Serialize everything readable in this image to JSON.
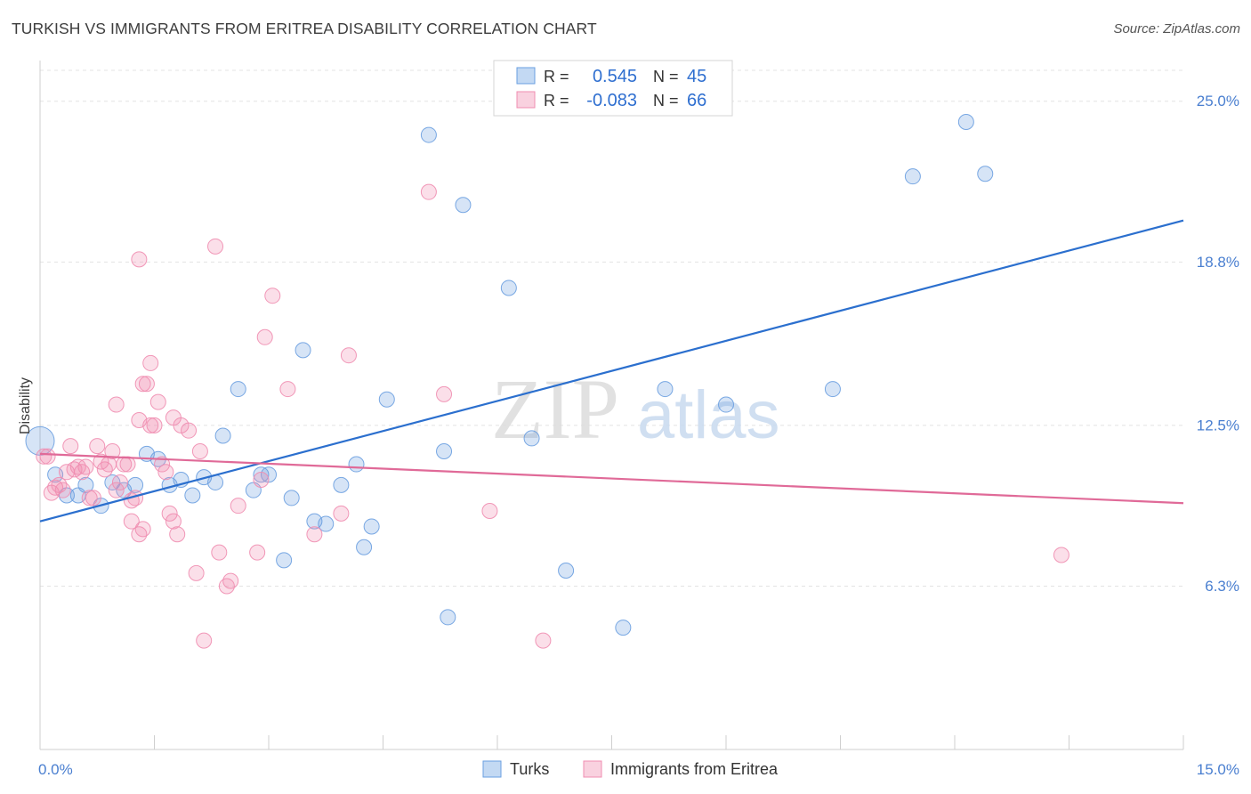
{
  "chart_data": {
    "type": "scatter",
    "title": "TURKISH VS IMMIGRANTS FROM ERITREA DISABILITY CORRELATION CHART",
    "source": "Source: ZipAtlas.com",
    "ylabel": "Disability",
    "xlabel": "",
    "xlim": [
      0,
      15
    ],
    "ylim": [
      0,
      26.5
    ],
    "x_tick_labels": [
      "0.0%",
      "15.0%"
    ],
    "y_ticks": [
      {
        "value": 6.3,
        "label": "6.3%"
      },
      {
        "value": 12.5,
        "label": "12.5%"
      },
      {
        "value": 18.8,
        "label": "18.8%"
      },
      {
        "value": 25.0,
        "label": "25.0%"
      }
    ],
    "watermark": {
      "part1": "ZIP",
      "part2": "atlas"
    },
    "legend": [
      {
        "r_label": "R =",
        "r_value": "0.545",
        "n_label": "N =",
        "n_value": "45"
      },
      {
        "r_label": "R =",
        "r_value": "-0.083",
        "n_label": "N =",
        "n_value": "66"
      }
    ],
    "series": [
      {
        "name": "Turks",
        "color": "#6a9fe0",
        "line_color": "#2b6fce",
        "trend": {
          "x0": 0,
          "y0": 8.8,
          "x1": 15,
          "y1": 20.4
        },
        "points": [
          [
            0.0,
            11.9
          ],
          [
            0.2,
            10.6
          ],
          [
            0.35,
            9.8
          ],
          [
            0.5,
            9.8
          ],
          [
            0.6,
            10.2
          ],
          [
            0.8,
            9.4
          ],
          [
            0.95,
            10.3
          ],
          [
            1.1,
            10.0
          ],
          [
            1.25,
            10.2
          ],
          [
            1.4,
            11.4
          ],
          [
            1.55,
            11.2
          ],
          [
            1.7,
            10.2
          ],
          [
            1.85,
            10.4
          ],
          [
            2.0,
            9.8
          ],
          [
            2.15,
            10.5
          ],
          [
            2.3,
            10.3
          ],
          [
            2.4,
            12.1
          ],
          [
            2.6,
            13.9
          ],
          [
            2.8,
            10.0
          ],
          [
            2.9,
            10.6
          ],
          [
            3.0,
            10.6
          ],
          [
            3.2,
            7.3
          ],
          [
            3.3,
            9.7
          ],
          [
            3.45,
            15.4
          ],
          [
            3.6,
            8.8
          ],
          [
            3.75,
            8.7
          ],
          [
            3.95,
            10.2
          ],
          [
            4.15,
            11.0
          ],
          [
            4.25,
            7.8
          ],
          [
            4.35,
            8.6
          ],
          [
            4.55,
            13.5
          ],
          [
            5.1,
            23.7
          ],
          [
            5.3,
            11.5
          ],
          [
            5.35,
            5.1
          ],
          [
            5.55,
            21.0
          ],
          [
            6.15,
            17.8
          ],
          [
            6.45,
            12.0
          ],
          [
            6.9,
            6.9
          ],
          [
            7.65,
            4.7
          ],
          [
            8.2,
            13.9
          ],
          [
            9.0,
            13.3
          ],
          [
            10.4,
            13.9
          ],
          [
            11.45,
            22.1
          ],
          [
            12.15,
            24.2
          ],
          [
            12.4,
            22.2
          ]
        ]
      },
      {
        "name": "Immigrants from Eritrea",
        "color": "#f08db0",
        "line_color": "#e06a98",
        "trend": {
          "x0": 0,
          "y0": 11.4,
          "x1": 15,
          "y1": 9.5
        },
        "points": [
          [
            0.05,
            11.3
          ],
          [
            0.1,
            11.3
          ],
          [
            0.15,
            9.9
          ],
          [
            0.2,
            10.1
          ],
          [
            0.25,
            10.2
          ],
          [
            0.3,
            10.0
          ],
          [
            0.35,
            10.7
          ],
          [
            0.4,
            11.7
          ],
          [
            0.45,
            10.8
          ],
          [
            0.5,
            10.9
          ],
          [
            0.55,
            10.7
          ],
          [
            0.6,
            10.9
          ],
          [
            0.65,
            9.7
          ],
          [
            0.7,
            9.7
          ],
          [
            0.75,
            11.7
          ],
          [
            0.8,
            11.1
          ],
          [
            0.85,
            10.8
          ],
          [
            0.9,
            11.0
          ],
          [
            0.95,
            11.5
          ],
          [
            1.0,
            10.0
          ],
          [
            1.05,
            10.3
          ],
          [
            1.1,
            11.0
          ],
          [
            1.15,
            11.0
          ],
          [
            1.2,
            9.6
          ],
          [
            1.25,
            9.7
          ],
          [
            1.3,
            12.7
          ],
          [
            1.35,
            14.1
          ],
          [
            1.4,
            14.1
          ],
          [
            1.45,
            12.5
          ],
          [
            1.5,
            12.5
          ],
          [
            1.55,
            13.4
          ],
          [
            1.6,
            11.0
          ],
          [
            1.65,
            10.7
          ],
          [
            1.7,
            9.1
          ],
          [
            1.75,
            8.8
          ],
          [
            1.8,
            8.3
          ],
          [
            1.2,
            8.8
          ],
          [
            1.3,
            8.3
          ],
          [
            1.35,
            8.5
          ],
          [
            1.75,
            12.8
          ],
          [
            1.85,
            12.5
          ],
          [
            1.95,
            12.3
          ],
          [
            2.05,
            6.8
          ],
          [
            2.1,
            11.5
          ],
          [
            2.15,
            4.2
          ],
          [
            2.3,
            19.4
          ],
          [
            2.35,
            7.6
          ],
          [
            2.45,
            6.3
          ],
          [
            2.5,
            6.5
          ],
          [
            2.6,
            9.4
          ],
          [
            2.85,
            7.6
          ],
          [
            2.9,
            10.4
          ],
          [
            2.95,
            15.9
          ],
          [
            3.05,
            17.5
          ],
          [
            3.25,
            13.9
          ],
          [
            3.6,
            8.3
          ],
          [
            3.95,
            9.1
          ],
          [
            4.05,
            15.2
          ],
          [
            5.1,
            21.5
          ],
          [
            5.3,
            13.7
          ],
          [
            5.9,
            9.2
          ],
          [
            6.6,
            4.2
          ],
          [
            13.4,
            7.5
          ],
          [
            1.3,
            18.9
          ],
          [
            1.45,
            14.9
          ],
          [
            1.0,
            13.3
          ]
        ]
      }
    ]
  }
}
